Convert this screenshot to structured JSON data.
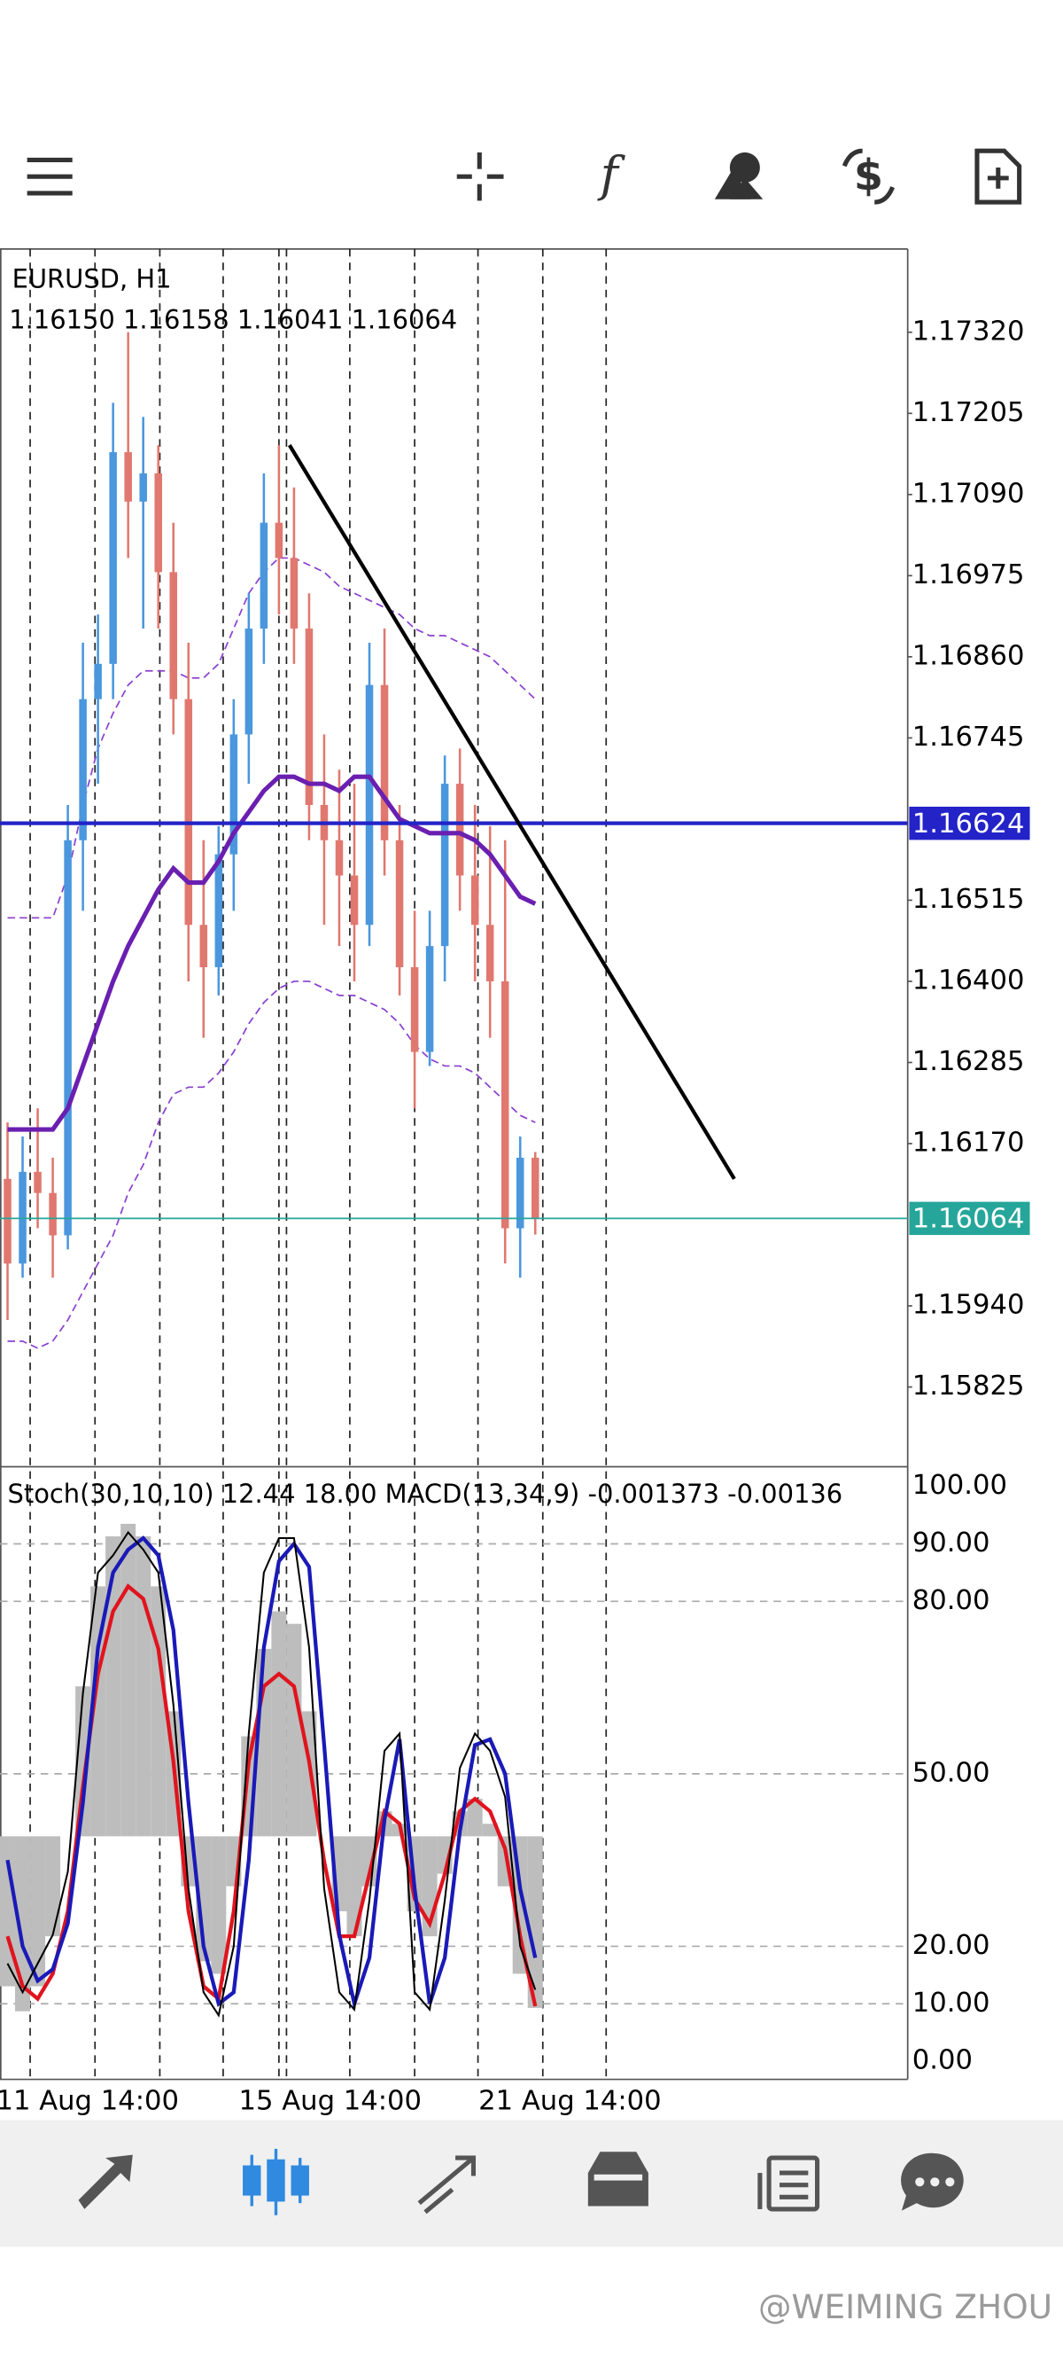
{
  "chart_data": {
    "type": "candlestick",
    "symbol": "EURUSD, H1",
    "ohlc_text": "1.16150 1.16158 1.16041 1.16064",
    "x": [
      0,
      1,
      2,
      3,
      4,
      5,
      6,
      7,
      8,
      9,
      10,
      11,
      12,
      13,
      14,
      15,
      16,
      17,
      18,
      19,
      20,
      21,
      22,
      23,
      24,
      25,
      26,
      27,
      28,
      29,
      30,
      31,
      32,
      33,
      34,
      35
    ],
    "candles": [
      [
        1.1612,
        1.162,
        1.1592,
        1.16
      ],
      [
        1.16,
        1.1618,
        1.1598,
        1.1613
      ],
      [
        1.1613,
        1.1622,
        1.1605,
        1.161
      ],
      [
        1.161,
        1.1615,
        1.1598,
        1.1604
      ],
      [
        1.1604,
        1.1665,
        1.1602,
        1.166
      ],
      [
        1.166,
        1.1688,
        1.165,
        1.168
      ],
      [
        1.168,
        1.1692,
        1.1668,
        1.1685
      ],
      [
        1.1685,
        1.1722,
        1.168,
        1.1715
      ],
      [
        1.1715,
        1.1732,
        1.17,
        1.1708
      ],
      [
        1.1708,
        1.172,
        1.169,
        1.1712
      ],
      [
        1.1712,
        1.1716,
        1.169,
        1.1698
      ],
      [
        1.1698,
        1.1705,
        1.1675,
        1.168
      ],
      [
        1.168,
        1.1688,
        1.164,
        1.1648
      ],
      [
        1.1648,
        1.166,
        1.1632,
        1.1642
      ],
      [
        1.1642,
        1.1662,
        1.1638,
        1.1658
      ],
      [
        1.1658,
        1.168,
        1.165,
        1.1675
      ],
      [
        1.1675,
        1.1695,
        1.1668,
        1.169
      ],
      [
        1.169,
        1.1712,
        1.1685,
        1.1705
      ],
      [
        1.1705,
        1.1716,
        1.1692,
        1.17
      ],
      [
        1.17,
        1.171,
        1.1685,
        1.169
      ],
      [
        1.169,
        1.1695,
        1.166,
        1.1665
      ],
      [
        1.1665,
        1.1675,
        1.1648,
        1.166
      ],
      [
        1.166,
        1.167,
        1.1645,
        1.1655
      ],
      [
        1.1655,
        1.1668,
        1.164,
        1.1648
      ],
      [
        1.1648,
        1.1688,
        1.1645,
        1.1682
      ],
      [
        1.1682,
        1.169,
        1.1655,
        1.166
      ],
      [
        1.166,
        1.1665,
        1.1638,
        1.1642
      ],
      [
        1.1642,
        1.165,
        1.1622,
        1.163
      ],
      [
        1.163,
        1.165,
        1.1628,
        1.1645
      ],
      [
        1.1645,
        1.1672,
        1.164,
        1.1668
      ],
      [
        1.1668,
        1.1673,
        1.165,
        1.1655
      ],
      [
        1.1655,
        1.1665,
        1.164,
        1.1648
      ],
      [
        1.1648,
        1.1662,
        1.1632,
        1.164
      ],
      [
        1.164,
        1.166,
        1.16,
        1.1605
      ],
      [
        1.1605,
        1.1618,
        1.1598,
        1.1615
      ],
      [
        1.1615,
        1.16158,
        1.16041,
        1.16064
      ]
    ],
    "up_color": "#4a97dd",
    "down_color": "#e0786f",
    "ma": {
      "color": "#6a1fb0",
      "values": [
        1.1619,
        1.1619,
        1.1619,
        1.1619,
        1.1622,
        1.1628,
        1.1634,
        1.164,
        1.1645,
        1.1649,
        1.1653,
        1.1656,
        1.1654,
        1.1654,
        1.1657,
        1.1661,
        1.1664,
        1.1667,
        1.1669,
        1.1669,
        1.1668,
        1.1668,
        1.1667,
        1.1669,
        1.1669,
        1.1666,
        1.1663,
        1.1662,
        1.1661,
        1.1661,
        1.1661,
        1.166,
        1.1658,
        1.1655,
        1.1652,
        1.1651
      ]
    },
    "upper_band": {
      "color": "#8a3fd0",
      "values": [
        1.1649,
        1.1649,
        1.1649,
        1.1649,
        1.1655,
        1.1665,
        1.1673,
        1.1678,
        1.1682,
        1.1684,
        1.1684,
        1.1684,
        1.1683,
        1.1683,
        1.1685,
        1.169,
        1.1695,
        1.1698,
        1.17,
        1.17,
        1.1699,
        1.1698,
        1.1696,
        1.1695,
        1.1694,
        1.1693,
        1.1692,
        1.169,
        1.1689,
        1.1689,
        1.1688,
        1.1687,
        1.1686,
        1.1684,
        1.1682,
        1.168
      ]
    },
    "lower_band": {
      "color": "#8a3fd0",
      "values": [
        1.1589,
        1.1589,
        1.1588,
        1.1589,
        1.1592,
        1.1596,
        1.16,
        1.1604,
        1.161,
        1.1614,
        1.162,
        1.1624,
        1.1625,
        1.1625,
        1.1627,
        1.163,
        1.1634,
        1.1637,
        1.1639,
        1.164,
        1.164,
        1.1639,
        1.1638,
        1.1638,
        1.1637,
        1.1636,
        1.1634,
        1.1631,
        1.1629,
        1.1628,
        1.1628,
        1.1627,
        1.1625,
        1.1623,
        1.1621,
        1.162
      ]
    },
    "levels": [
      {
        "value": 1.16624,
        "label": "1.16624",
        "color": "#2323c8"
      },
      {
        "value": 1.16064,
        "label": "1.16064",
        "color": "#26a69a"
      }
    ],
    "trendline": {
      "x": [
        18.7,
        48.2
      ],
      "y": [
        1.1716,
        1.1612
      ]
    },
    "separators": [
      1.5,
      5.8,
      10.1,
      14.3,
      18,
      18.5,
      22.7,
      27,
      31.2,
      35.5,
      39.7
    ],
    "xlim": [
      -0.5,
      59.7
    ],
    "xticks": [
      {
        "value": 5.3,
        "label": "11 Aug 14:00"
      },
      {
        "value": 21.4,
        "label": "15 Aug 14:00"
      },
      {
        "value": 37.3,
        "label": "21 Aug 14:00"
      }
    ],
    "ylim": [
      1.15712,
      1.17438
    ],
    "yticks": [
      {
        "value": 1.1732,
        "label": "1.17320"
      },
      {
        "value": 1.17205,
        "label": "1.17205"
      },
      {
        "value": 1.1709,
        "label": "1.17090"
      },
      {
        "value": 1.16975,
        "label": "1.16975"
      },
      {
        "value": 1.1686,
        "label": "1.16860"
      },
      {
        "value": 1.16745,
        "label": "1.16745"
      },
      {
        "value": 1.16515,
        "label": "1.16515"
      },
      {
        "value": 1.164,
        "label": "1.16400"
      },
      {
        "value": 1.16285,
        "label": "1.16285"
      },
      {
        "value": 1.1617,
        "label": "1.16170"
      },
      {
        "value": 1.1594,
        "label": "1.15940"
      },
      {
        "value": 1.15825,
        "label": "1.15825"
      }
    ],
    "indicator": {
      "title": "Stoch(30,10,10) 12.44 18.00 MACD(13,34,9) -0.001373 -0.00136",
      "ylim": [
        0,
        100
      ],
      "yticks": [
        {
          "value": 100,
          "label": "100.00"
        },
        {
          "value": 90,
          "label": "90.00"
        },
        {
          "value": 80,
          "label": "80.00"
        },
        {
          "value": 50,
          "label": "50.00"
        },
        {
          "value": 20,
          "label": "20.00"
        },
        {
          "value": 10,
          "label": "10.00"
        },
        {
          "value": 0,
          "label": "0.00"
        }
      ],
      "grid": true,
      "y2lim": [
        -0.0018,
        0.0028
      ],
      "stoch_main": {
        "color": "#000000",
        "values": [
          17,
          12,
          17,
          22,
          33,
          64,
          85,
          88,
          92,
          89,
          85,
          62,
          30,
          12,
          8,
          20,
          57,
          85,
          91,
          91,
          72,
          30,
          12,
          9,
          28,
          54,
          57,
          12,
          9,
          28,
          51,
          57,
          54,
          46,
          20,
          12.44
        ]
      },
      "stoch_signal": {
        "color": "#1a1ab8",
        "values": [
          35,
          20,
          14,
          16,
          24,
          45,
          72,
          85,
          89,
          91,
          88,
          75,
          45,
          20,
          10,
          12,
          35,
          72,
          87,
          90,
          86,
          55,
          22,
          10,
          18,
          42,
          56,
          30,
          10,
          18,
          40,
          55,
          56,
          50,
          30,
          18.0
        ]
      },
      "macd_hist": {
        "color": "#bdbdbd",
        "axis": "y2",
        "values": [
          -0.0012,
          -0.0014,
          -0.0012,
          -0.0008,
          0.0,
          0.0012,
          0.002,
          0.0024,
          0.0025,
          0.0024,
          0.002,
          0.001,
          -0.0004,
          -0.001,
          -0.0011,
          -0.0004,
          0.0008,
          0.0015,
          0.0018,
          0.0017,
          0.001,
          0.0,
          -0.0006,
          -0.0008,
          -0.0004,
          0.0002,
          0.0001,
          -0.0006,
          -0.0008,
          -0.0003,
          0.0002,
          0.0003,
          0.0001,
          -0.0004,
          -0.0011,
          -0.001373
        ]
      },
      "macd_signal": {
        "color": "#e0141e",
        "axis": "y2",
        "values": [
          -0.0008,
          -0.0012,
          -0.0013,
          -0.0011,
          -0.0006,
          0.0004,
          0.0013,
          0.0018,
          0.002,
          0.0019,
          0.0015,
          0.0006,
          -0.0006,
          -0.0012,
          -0.0013,
          -0.0006,
          0.0006,
          0.0012,
          0.0013,
          0.0012,
          0.0006,
          -0.0002,
          -0.0008,
          -0.0008,
          -0.0003,
          0.0002,
          0.0001,
          -0.0005,
          -0.0007,
          -0.0003,
          0.0002,
          0.0003,
          0.0002,
          -0.0001,
          -0.0008,
          -0.00136
        ]
      }
    },
    "watermark": "@WEIMING ZHOU"
  }
}
